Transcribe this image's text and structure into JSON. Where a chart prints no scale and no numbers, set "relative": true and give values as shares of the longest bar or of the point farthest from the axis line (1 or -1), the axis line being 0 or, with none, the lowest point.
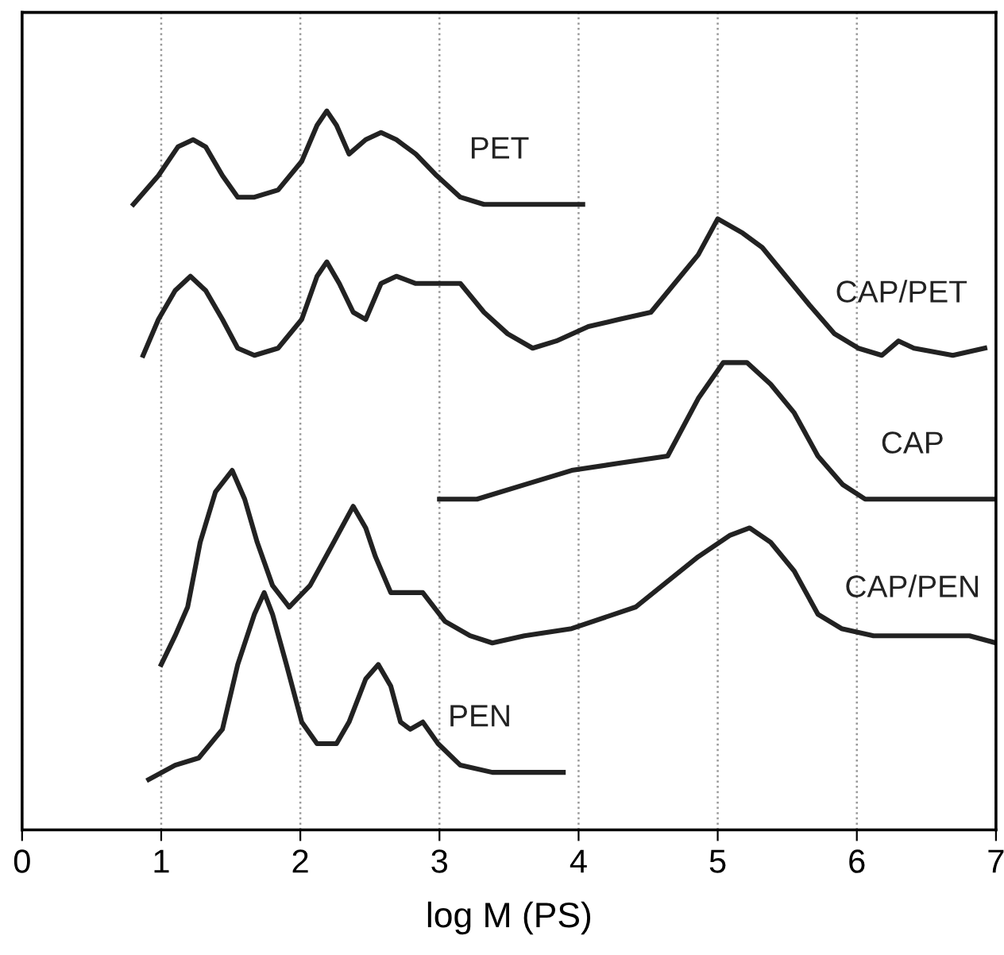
{
  "chart_data": {
    "type": "line",
    "relative": true,
    "xlabel": "log M (PS)",
    "xlim": [
      0,
      7
    ],
    "xticks": [
      0,
      1,
      2,
      3,
      4,
      5,
      6,
      7
    ],
    "grid": "x",
    "tick_labels": "x",
    "marker": "none",
    "line_style": "solid",
    "legend": false,
    "series": [
      {
        "name": "PET",
        "color": "#222222",
        "x": [
          0.8,
          0.98,
          1.12,
          1.23,
          1.32,
          1.44,
          1.55,
          1.67,
          1.84,
          2.01,
          2.12,
          2.19,
          2.26,
          2.35,
          2.47,
          2.58,
          2.69,
          2.83,
          2.98,
          3.15,
          3.32,
          3.61,
          4.03
        ],
        "values": [
          0.87,
          0.91,
          0.95,
          0.96,
          0.95,
          0.91,
          0.88,
          0.88,
          0.89,
          0.93,
          0.98,
          1.0,
          0.98,
          0.94,
          0.96,
          0.97,
          0.96,
          0.94,
          0.91,
          0.88,
          0.87,
          0.87,
          0.87
        ]
      },
      {
        "name": "CAP/PET",
        "color": "#222222",
        "x": [
          0.87,
          0.98,
          1.1,
          1.21,
          1.32,
          1.44,
          1.55,
          1.67,
          1.84,
          2.01,
          2.12,
          2.19,
          2.28,
          2.38,
          2.47,
          2.58,
          2.69,
          2.83,
          2.99,
          3.15,
          3.32,
          3.49,
          3.67,
          3.84,
          4.07,
          4.29,
          4.52,
          4.69,
          4.86,
          5.0,
          5.18,
          5.32,
          5.49,
          5.66,
          5.84,
          6.01,
          6.18,
          6.3,
          6.41,
          6.69,
          6.92
        ],
        "values": [
          0.66,
          0.71,
          0.75,
          0.77,
          0.75,
          0.71,
          0.67,
          0.66,
          0.67,
          0.71,
          0.77,
          0.79,
          0.76,
          0.72,
          0.71,
          0.76,
          0.77,
          0.76,
          0.76,
          0.76,
          0.72,
          0.69,
          0.67,
          0.68,
          0.7,
          0.71,
          0.72,
          0.76,
          0.8,
          0.85,
          0.83,
          0.81,
          0.77,
          0.73,
          0.69,
          0.67,
          0.66,
          0.68,
          0.67,
          0.66,
          0.67
        ]
      },
      {
        "name": "CAP",
        "color": "#222222",
        "x": [
          3.0,
          3.27,
          3.61,
          3.95,
          4.29,
          4.64,
          4.75,
          4.86,
          5.04,
          5.21,
          5.38,
          5.55,
          5.72,
          5.9,
          6.06,
          6.35,
          6.69,
          7.0
        ],
        "values": [
          0.46,
          0.46,
          0.48,
          0.5,
          0.51,
          0.52,
          0.56,
          0.6,
          0.65,
          0.65,
          0.62,
          0.58,
          0.52,
          0.48,
          0.46,
          0.46,
          0.46,
          0.46
        ]
      },
      {
        "name": "CAP/PEN",
        "color": "#222222",
        "x": [
          1.0,
          1.1,
          1.19,
          1.28,
          1.39,
          1.51,
          1.6,
          1.69,
          1.8,
          1.92,
          2.07,
          2.24,
          2.38,
          2.47,
          2.54,
          2.65,
          2.76,
          2.88,
          3.04,
          3.22,
          3.38,
          3.61,
          3.95,
          4.41,
          4.86,
          5.09,
          5.23,
          5.38,
          5.55,
          5.72,
          5.89,
          6.12,
          6.46,
          6.81,
          7.0
        ],
        "values": [
          0.23,
          0.27,
          0.31,
          0.4,
          0.47,
          0.5,
          0.46,
          0.4,
          0.34,
          0.31,
          0.34,
          0.4,
          0.45,
          0.42,
          0.38,
          0.33,
          0.33,
          0.33,
          0.29,
          0.27,
          0.26,
          0.27,
          0.28,
          0.31,
          0.38,
          0.41,
          0.42,
          0.4,
          0.36,
          0.3,
          0.28,
          0.27,
          0.27,
          0.27,
          0.26
        ]
      },
      {
        "name": "PEN",
        "color": "#222222",
        "x": [
          0.91,
          1.1,
          1.27,
          1.44,
          1.55,
          1.67,
          1.74,
          1.8,
          1.9,
          2.01,
          2.12,
          2.26,
          2.35,
          2.47,
          2.56,
          2.65,
          2.72,
          2.79,
          2.88,
          2.99,
          3.15,
          3.38,
          3.89
        ],
        "values": [
          0.07,
          0.09,
          0.1,
          0.14,
          0.23,
          0.3,
          0.33,
          0.3,
          0.23,
          0.15,
          0.12,
          0.12,
          0.15,
          0.21,
          0.23,
          0.2,
          0.15,
          0.14,
          0.15,
          0.12,
          0.09,
          0.08,
          0.08
        ]
      }
    ]
  }
}
